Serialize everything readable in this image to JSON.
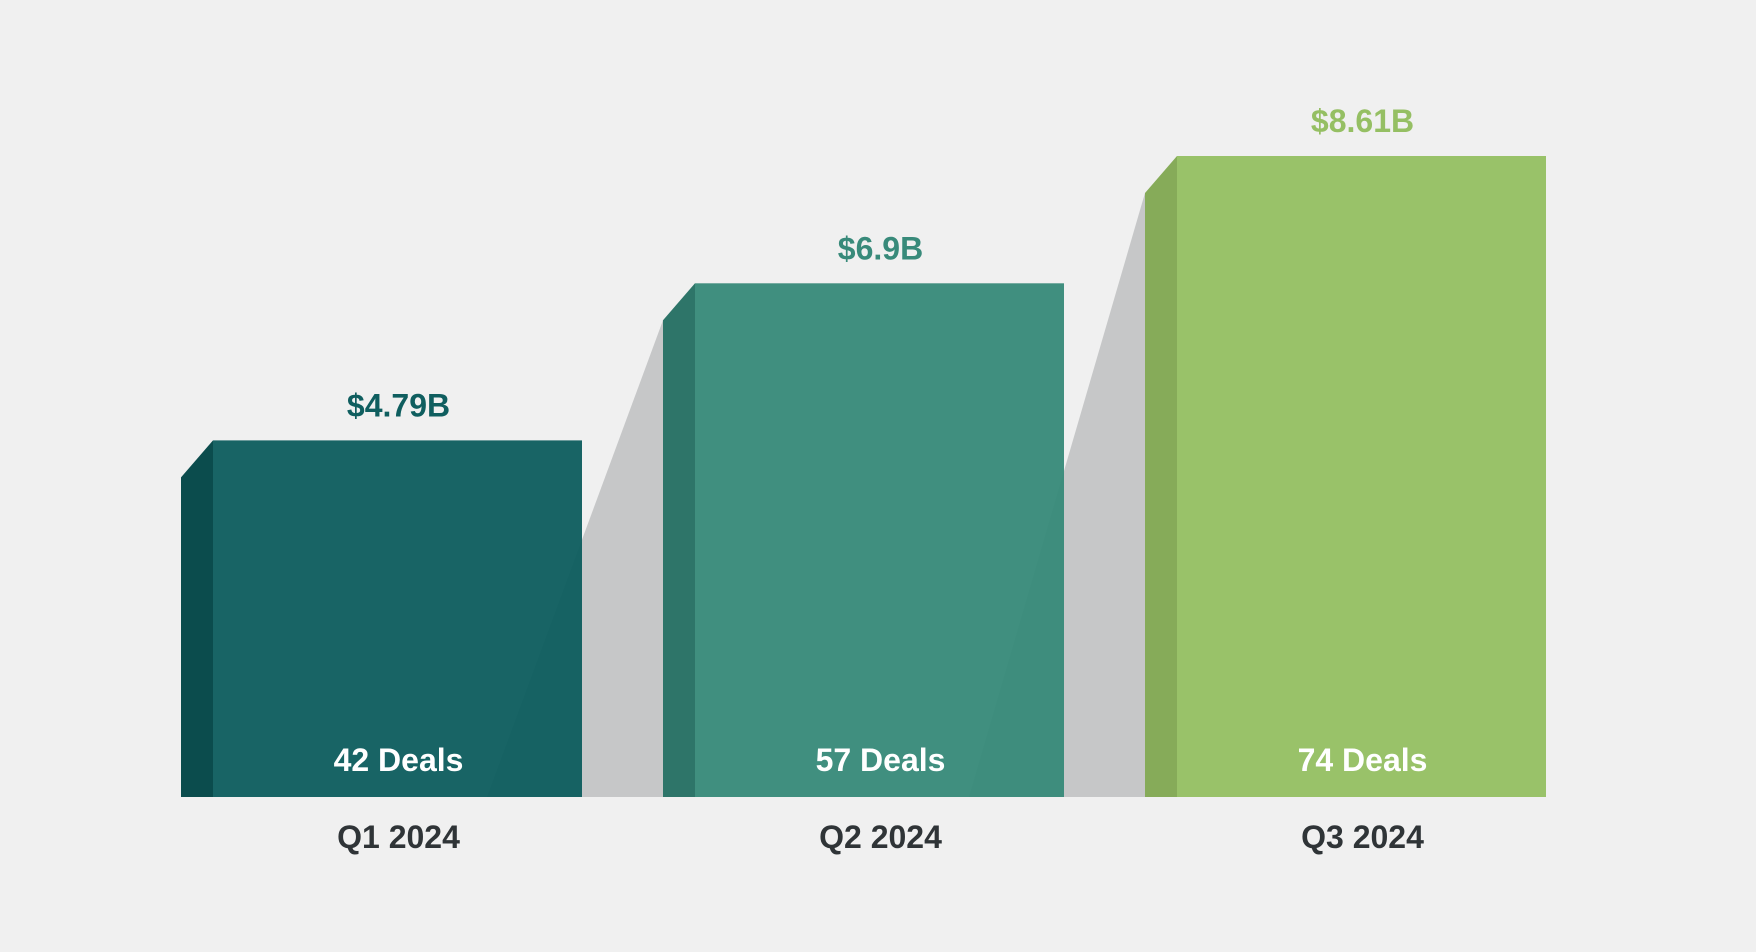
{
  "chart_data": {
    "type": "bar",
    "categories": [
      "Q1 2024",
      "Q2 2024",
      "Q3 2024"
    ],
    "values": [
      4.79,
      6.9,
      8.61
    ],
    "value_labels": [
      "$4.79B",
      "$6.9B",
      "$8.61B"
    ],
    "deal_labels": [
      "42 Deals",
      "57 Deals",
      "74 Deals"
    ],
    "deals": [
      42,
      57,
      74
    ],
    "colors": [
      "#0f5e5f",
      "#388a7a",
      "#95bf63"
    ],
    "side_colors": [
      "#0b4c4d",
      "#2e7569",
      "#86ab59"
    ],
    "shadow_color": "#b8b9bb",
    "background": "#f0f0f0",
    "tick_color": "#2f3437",
    "ylim": [
      0,
      10
    ],
    "grid": false,
    "title": "",
    "xlabel": "",
    "ylabel": ""
  }
}
